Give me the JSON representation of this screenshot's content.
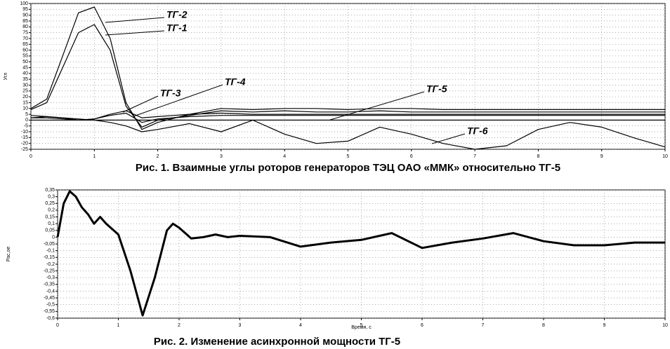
{
  "chart_data": [
    {
      "type": "line",
      "y_label": "Угл",
      "caption": "Рис. 1. Взаимные углы роторов генераторов ТЭЦ ОАО «ММК» относительно ТГ-5",
      "x": [
        0,
        0.25,
        0.5,
        0.75,
        1,
        1.25,
        1.5,
        1.75,
        2,
        2.5,
        3,
        3.5,
        4,
        4.5,
        5,
        5.5,
        6,
        6.5,
        7,
        7.5,
        8,
        8.5,
        9,
        9.5,
        10
      ],
      "xlim": [
        0,
        10
      ],
      "xticks": [
        0,
        1,
        2,
        3,
        4,
        5,
        6,
        7,
        8,
        9,
        10
      ],
      "ylim": [
        -25,
        100
      ],
      "yticks": [
        -25,
        -20,
        -15,
        -10,
        -5,
        0,
        5,
        10,
        15,
        20,
        25,
        30,
        35,
        40,
        45,
        50,
        55,
        60,
        65,
        70,
        75,
        80,
        85,
        90,
        95,
        100
      ],
      "grid": true,
      "series": [
        {
          "name": "ТГ-2",
          "color": "#000000",
          "values": [
            10,
            18,
            55,
            92,
            97,
            70,
            15,
            -8,
            -2,
            5,
            10,
            9,
            10,
            10,
            9,
            10,
            10,
            9,
            9,
            9,
            9,
            9,
            9,
            9,
            9
          ]
        },
        {
          "name": "ТГ-1",
          "color": "#000000",
          "values": [
            9,
            15,
            45,
            75,
            82,
            60,
            12,
            -6,
            0,
            4,
            8,
            7,
            8,
            7,
            7,
            8,
            7,
            7,
            7,
            7,
            7,
            7,
            7,
            7,
            7
          ]
        },
        {
          "name": "ТГ-3",
          "color": "#000000",
          "values": [
            2,
            3,
            2,
            0,
            1,
            5,
            8,
            2,
            3,
            5,
            6,
            5,
            5,
            5,
            5,
            5,
            5,
            5,
            5,
            5,
            5,
            5,
            5,
            5,
            5
          ]
        },
        {
          "name": "ТГ-4",
          "color": "#000000",
          "values": [
            2,
            2,
            1,
            0,
            1,
            4,
            6,
            -2,
            1,
            3,
            4,
            4,
            4,
            4,
            4,
            4,
            4,
            4,
            4,
            4,
            4,
            4,
            4,
            4,
            4
          ]
        },
        {
          "name": "ТГ-5",
          "color": "#000000",
          "values": [
            0,
            0,
            0,
            0,
            0,
            0,
            0,
            0,
            0,
            0,
            0,
            0,
            0,
            0,
            0,
            0,
            0,
            0,
            0,
            0,
            0,
            0,
            0,
            0,
            0
          ]
        },
        {
          "name": "ТГ-6",
          "color": "#000000",
          "values": [
            4,
            3,
            2,
            1,
            0,
            -2,
            -5,
            -10,
            -8,
            -3,
            -10,
            0,
            -12,
            -20,
            -18,
            -6,
            -12,
            -20,
            -25,
            -22,
            -8,
            -2,
            -6,
            -15,
            -23
          ]
        }
      ]
    },
    {
      "type": "line",
      "y_label": "Рас,ое",
      "x_label": "Время, с",
      "caption": "Рис. 2. Изменение асинхронной мощности ТГ-5",
      "x": [
        0,
        0.1,
        0.2,
        0.3,
        0.4,
        0.5,
        0.6,
        0.7,
        0.8,
        1,
        1.2,
        1.4,
        1.6,
        1.8,
        1.9,
        2,
        2.2,
        2.4,
        2.6,
        2.8,
        3,
        3.5,
        4,
        4.5,
        5,
        5.5,
        6,
        6.5,
        7,
        7.5,
        8,
        8.5,
        9,
        9.5,
        10
      ],
      "xlim": [
        0,
        10
      ],
      "xticks": [
        0,
        1,
        2,
        3,
        4,
        5,
        6,
        7,
        8,
        9,
        10
      ],
      "ylim": [
        -0.6,
        0.35
      ],
      "yticks": [
        {
          "value": 0.35,
          "label": "0,35"
        },
        {
          "value": 0.3,
          "label": "0,3"
        },
        {
          "value": 0.25,
          "label": "0,25"
        },
        {
          "value": 0.2,
          "label": "0,2"
        },
        {
          "value": 0.15,
          "label": "0,15"
        },
        {
          "value": 0.1,
          "label": "0,1"
        },
        {
          "value": 0.05,
          "label": "0,05"
        },
        0,
        {
          "value": -0.05,
          "label": "-0,05"
        },
        {
          "value": -0.1,
          "label": "-0,1"
        },
        {
          "value": -0.15,
          "label": "-0,15"
        },
        {
          "value": -0.2,
          "label": "-0,2"
        },
        {
          "value": -0.25,
          "label": "-0,25"
        },
        {
          "value": -0.3,
          "label": "-0,3"
        },
        {
          "value": -0.35,
          "label": "-0,35"
        },
        {
          "value": -0.4,
          "label": "-0,4"
        },
        {
          "value": -0.45,
          "label": "-0,45"
        },
        {
          "value": -0.5,
          "label": "-0,5"
        },
        {
          "value": -0.55,
          "label": "-0,55"
        },
        {
          "value": -0.6,
          "label": "-0,6"
        }
      ],
      "grid": true,
      "series": [
        {
          "name": "ТГ-5",
          "color": "#000000",
          "values": [
            0,
            0.25,
            0.34,
            0.3,
            0.22,
            0.17,
            0.1,
            0.15,
            0.1,
            0.02,
            -0.25,
            -0.58,
            -0.3,
            0.05,
            0.1,
            0.07,
            -0.01,
            0,
            0.02,
            0,
            0.01,
            0,
            -0.07,
            -0.04,
            -0.02,
            0.03,
            -0.08,
            -0.04,
            -0.01,
            0.03,
            -0.03,
            -0.06,
            -0.06,
            -0.04,
            -0.04
          ]
        }
      ]
    }
  ]
}
